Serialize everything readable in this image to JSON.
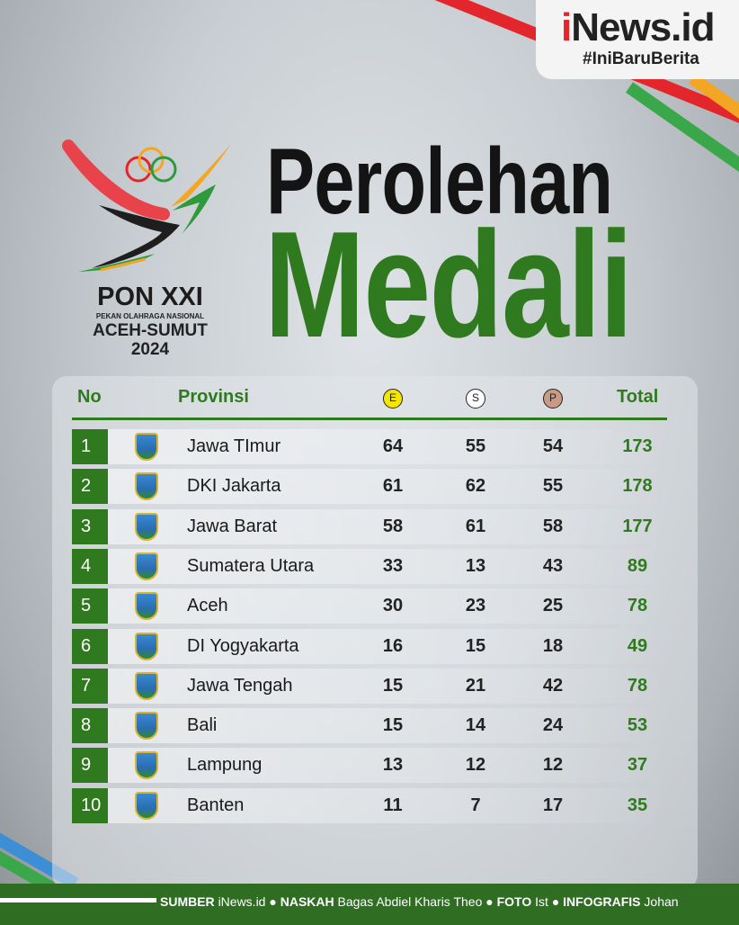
{
  "brand": {
    "logo_i": "i",
    "logo_rest": "News.id",
    "tagline": "#IniBaruBerita"
  },
  "event": {
    "name": "PON XXI",
    "subtitle": "PEKAN OLAHRAGA NASIONAL",
    "host": "ACEH-SUMUT",
    "year": "2024"
  },
  "title": {
    "line1": "Perolehan",
    "line2": "Medali"
  },
  "table": {
    "headers": {
      "no": "No",
      "province": "Provinsi",
      "gold": "E",
      "silver": "S",
      "bronze": "P",
      "total": "Total"
    },
    "medal_colors": {
      "gold": "#f5e600",
      "silver": "#ffffff",
      "bronze": "#c99a84"
    },
    "rows": [
      {
        "no": "1",
        "province": "Jawa TImur",
        "gold": "64",
        "silver": "55",
        "bronze": "54",
        "total": "173"
      },
      {
        "no": "2",
        "province": "DKI Jakarta",
        "gold": "61",
        "silver": "62",
        "bronze": "55",
        "total": "178"
      },
      {
        "no": "3",
        "province": "Jawa Barat",
        "gold": "58",
        "silver": "61",
        "bronze": "58",
        "total": "177"
      },
      {
        "no": "4",
        "province": "Sumatera Utara",
        "gold": "33",
        "silver": "13",
        "bronze": "43",
        "total": "89"
      },
      {
        "no": "5",
        "province": "Aceh",
        "gold": "30",
        "silver": "23",
        "bronze": "25",
        "total": "78"
      },
      {
        "no": "6",
        "province": "DI Yogyakarta",
        "gold": "16",
        "silver": "15",
        "bronze": "18",
        "total": "49"
      },
      {
        "no": "7",
        "province": "Jawa Tengah",
        "gold": "15",
        "silver": "21",
        "bronze": "42",
        "total": "78"
      },
      {
        "no": "8",
        "province": "Bali",
        "gold": "15",
        "silver": "14",
        "bronze": "24",
        "total": "53"
      },
      {
        "no": "9",
        "province": "Lampung",
        "gold": "13",
        "silver": "12",
        "bronze": "12",
        "total": "37"
      },
      {
        "no": "10",
        "province": "Banten",
        "gold": "11",
        "silver": "7",
        "bronze": "17",
        "total": "35"
      }
    ]
  },
  "footer": {
    "k1": "SUMBER",
    "v1": "iNews.id",
    "k2": "NASKAH",
    "v2": "Bagas Abdiel Kharis Theo",
    "k3": "FOTO",
    "v3": "Ist",
    "k4": "INFOGRAFIS",
    "v4": "Johan",
    "sep": "●"
  }
}
